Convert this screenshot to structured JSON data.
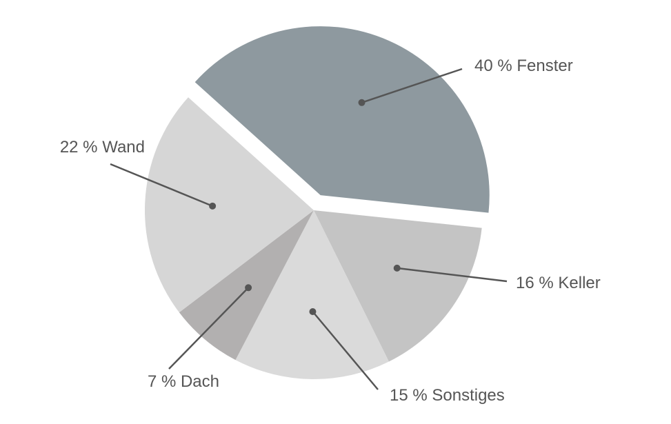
{
  "chart_data": {
    "type": "pie",
    "categories": [
      "Fenster",
      "Keller",
      "Sonstiges",
      "Dach",
      "Wand"
    ],
    "values": [
      40,
      16,
      15,
      7,
      22
    ],
    "value_labels": [
      "40 %",
      "16 %",
      "15 %",
      "7 %",
      "22 %"
    ],
    "colors": [
      "#8e999f",
      "#c4c4c4",
      "#dadada",
      "#b2b0b0",
      "#d6d6d6"
    ],
    "exploded": [
      "Fenster"
    ]
  }
}
